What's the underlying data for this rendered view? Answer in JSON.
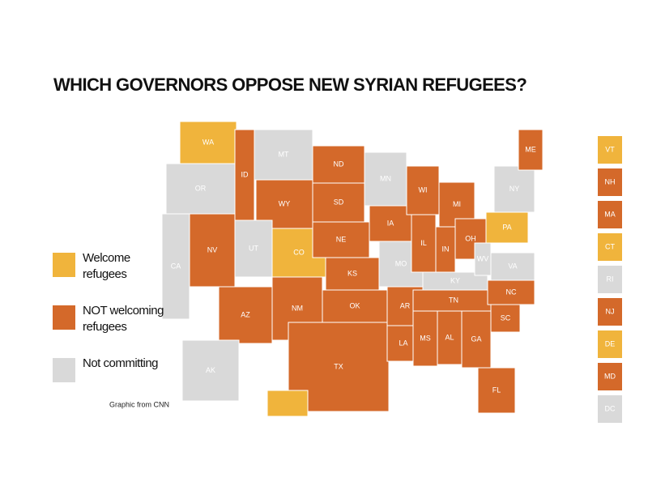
{
  "title": "WHICH GOVERNORS OPPOSE NEW SYRIAN REFUGEES?",
  "legend": [
    {
      "lines": [
        "Welcome",
        "refugees"
      ],
      "color": "#f0b43c"
    },
    {
      "lines": [
        "NOT welcoming",
        "refugees"
      ],
      "color": "#d4692a"
    },
    {
      "lines": [
        "Not committing"
      ],
      "color": "#d9d9d9"
    }
  ],
  "states": [
    {
      "label": "WA",
      "color": "#f0b43c"
    },
    {
      "label": "OR",
      "color": "#d9d9d9"
    },
    {
      "label": "CA",
      "color": "#d9d9d9"
    },
    {
      "label": "NV",
      "color": "#d4692a"
    },
    {
      "label": "ID",
      "color": "#d4692a"
    },
    {
      "label": "MT",
      "color": "#d9d9d9"
    },
    {
      "label": "WY",
      "color": "#d4692a"
    },
    {
      "label": "UT",
      "color": "#d9d9d9"
    },
    {
      "label": "CO",
      "color": "#f0b43c"
    },
    {
      "label": "AZ",
      "color": "#d4692a"
    },
    {
      "label": "NM",
      "color": "#d4692a"
    },
    {
      "label": "ND",
      "color": "#d4692a"
    },
    {
      "label": "SD",
      "color": "#d4692a"
    },
    {
      "label": "NE",
      "color": "#d4692a"
    },
    {
      "label": "KS",
      "color": "#d4692a"
    },
    {
      "label": "OK",
      "color": "#d4692a"
    },
    {
      "label": "TX",
      "color": "#d4692a"
    },
    {
      "label": "MN",
      "color": "#d9d9d9"
    },
    {
      "label": "IA",
      "color": "#d4692a"
    },
    {
      "label": "MO",
      "color": "#d9d9d9"
    },
    {
      "label": "AR",
      "color": "#d4692a"
    },
    {
      "label": "LA",
      "color": "#d4692a"
    },
    {
      "label": "WI",
      "color": "#d4692a"
    },
    {
      "label": "IL",
      "color": "#d4692a"
    },
    {
      "label": "MI",
      "color": "#d4692a"
    },
    {
      "label": "IN",
      "color": "#d4692a"
    },
    {
      "label": "OH",
      "color": "#d4692a"
    },
    {
      "label": "KY",
      "color": "#d9d9d9"
    },
    {
      "label": "TN",
      "color": "#d4692a"
    },
    {
      "label": "MS",
      "color": "#d4692a"
    },
    {
      "label": "AL",
      "color": "#d4692a"
    },
    {
      "label": "GA",
      "color": "#d4692a"
    },
    {
      "label": "FL",
      "color": "#d4692a"
    },
    {
      "label": "SC",
      "color": "#d4692a"
    },
    {
      "label": "NC",
      "color": "#d4692a"
    },
    {
      "label": "VA",
      "color": "#d9d9d9"
    },
    {
      "label": "WV",
      "color": "#d9d9d9"
    },
    {
      "label": "PA",
      "color": "#f0b43c"
    },
    {
      "label": "NY",
      "color": "#d9d9d9"
    },
    {
      "label": "ME",
      "color": "#d4692a"
    },
    {
      "label": "AK",
      "color": "#d9d9d9"
    },
    {
      "label": null,
      "color": "#f0b43c"
    }
  ],
  "side_states": [
    {
      "label": "VT",
      "color": "#f0b43c"
    },
    {
      "label": "NH",
      "color": "#d4692a"
    },
    {
      "label": "MA",
      "color": "#d4692a"
    },
    {
      "label": "CT",
      "color": "#f0b43c"
    },
    {
      "label": "RI",
      "color": "#d9d9d9"
    },
    {
      "label": "NJ",
      "color": "#d4692a"
    },
    {
      "label": "DE",
      "color": "#f0b43c"
    },
    {
      "label": "MD",
      "color": "#d4692a"
    },
    {
      "label": "DC",
      "color": "#d9d9d9"
    }
  ],
  "credit": "Graphic from CNN"
}
